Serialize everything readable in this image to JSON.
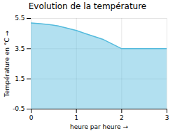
{
  "chart_data": {
    "type": "area",
    "title": "Evolution de la température",
    "xlabel": "heure par heure",
    "ylabel": "Température en °C",
    "x": [
      0,
      0.2,
      0.4,
      0.6,
      0.8,
      1.0,
      1.2,
      1.4,
      1.6,
      1.8,
      2.0,
      2.25,
      2.5,
      2.75,
      3.0
    ],
    "values": [
      5.2,
      5.15,
      5.1,
      5.0,
      4.85,
      4.7,
      4.5,
      4.3,
      4.1,
      3.8,
      3.5,
      3.5,
      3.5,
      3.5,
      3.5
    ],
    "color": "#55bbdd",
    "xlim": [
      0,
      3
    ],
    "xticks": [
      0,
      1,
      2,
      3
    ],
    "ylim": [
      -0.5,
      5.5
    ],
    "yticks": [
      -0.5,
      1.5,
      3.5,
      5.5
    ],
    "grid": true
  }
}
